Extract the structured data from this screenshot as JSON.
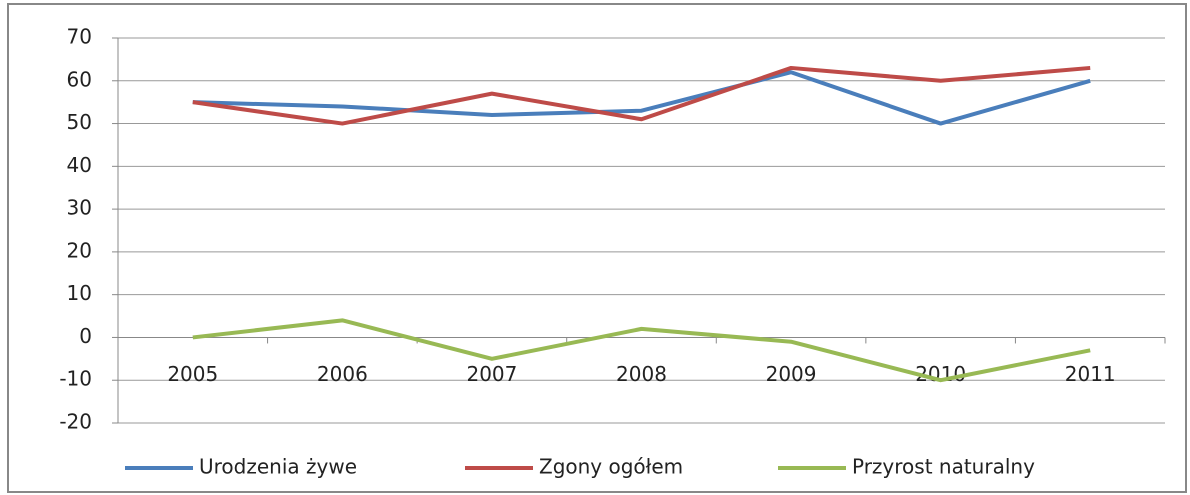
{
  "chart_data": {
    "type": "line",
    "categories": [
      "2005",
      "2006",
      "2007",
      "2008",
      "2009",
      "2010",
      "2011"
    ],
    "series": [
      {
        "name": "Urodzenia żywe",
        "color": "#4a7ebb",
        "values": [
          55,
          54,
          52,
          53,
          62,
          50,
          60
        ]
      },
      {
        "name": "Zgony ogółem",
        "color": "#be4b48",
        "values": [
          55,
          50,
          57,
          51,
          63,
          60,
          63
        ]
      },
      {
        "name": "Przyrost naturalny",
        "color": "#98b954",
        "values": [
          0,
          4,
          -5,
          2,
          -1,
          -10,
          -3
        ]
      }
    ],
    "ylim": [
      -20,
      70
    ],
    "yticks": [
      -20,
      -10,
      0,
      10,
      20,
      30,
      40,
      50,
      60,
      70
    ],
    "grid": true,
    "legend": "bottom"
  }
}
